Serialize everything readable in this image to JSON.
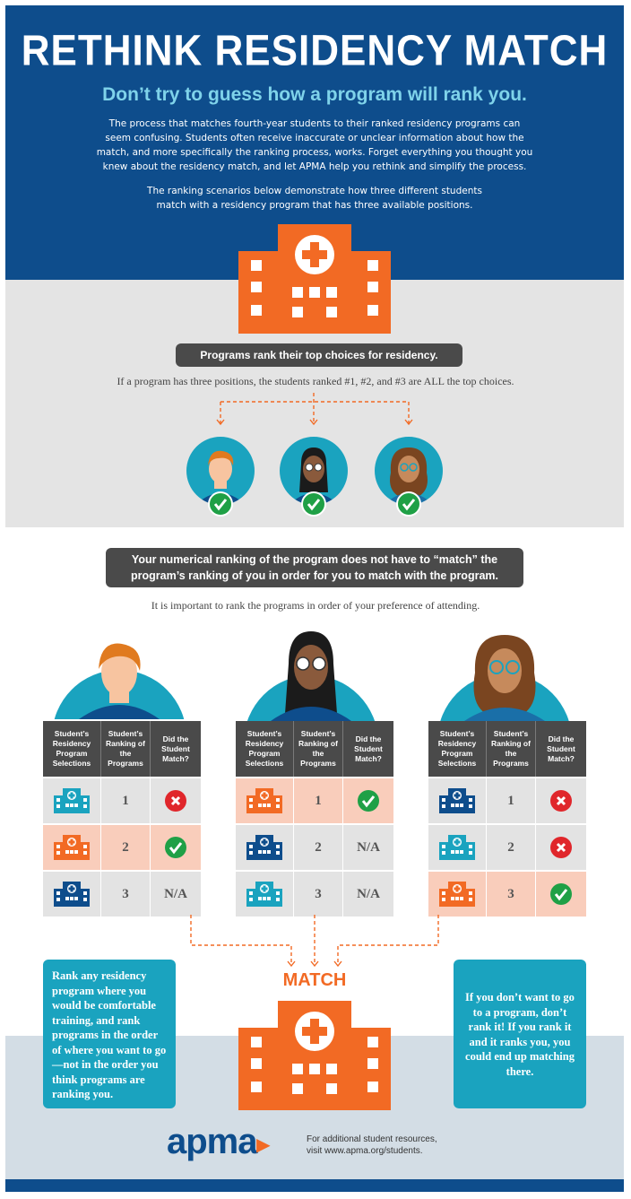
{
  "header": {
    "title": "RETHINK RESIDENCY MATCH",
    "subtitle": "Don’t try to guess how a program will rank you.",
    "intro": "The process that matches fourth-year students to their ranked residency programs can seem confusing. Students often receive inaccurate or unclear information about how the match, and more specifically the ranking process, works. Forget everything you thought you knew about the residency match, and let APMA help you rethink and simplify the process.",
    "scenario_note": "The ranking scenarios below demonstrate how three different students match with a residency program that has three available positions."
  },
  "programs_section": {
    "pill": "Programs rank their top choices for residency.",
    "note": "If a program has three positions, the students ranked #1, #2, and #3 are ALL the top choices."
  },
  "ranking_section": {
    "pill_line1": "Your numerical ranking of the program does not have to “match” the",
    "pill_line2": "program’s ranking of you in order for you to match with the program.",
    "note": "It is important to rank the programs in order of your preference of attending."
  },
  "table_headers": [
    "Student’s Residency Program Selections",
    "Student’s Ranking of the Programs",
    "Did the Student Match?"
  ],
  "colors": {
    "navy": "#0e4d8c",
    "teal": "#1aa3bf",
    "orange": "#f26a24",
    "peach": "#f9cdbb",
    "check_green": "#1fa046",
    "x_red": "#e0262b"
  },
  "students": [
    {
      "rows": [
        {
          "program": "teal-hospital-icon",
          "rank": "1",
          "match": "x-icon",
          "highlight": false
        },
        {
          "program": "orange-hospital-icon",
          "rank": "2",
          "match": "check-icon",
          "highlight": true
        },
        {
          "program": "navy-hospital-icon",
          "rank": "3",
          "match": "N/A",
          "highlight": false
        }
      ]
    },
    {
      "rows": [
        {
          "program": "orange-hospital-icon",
          "rank": "1",
          "match": "check-icon",
          "highlight": true
        },
        {
          "program": "navy-hospital-icon",
          "rank": "2",
          "match": "N/A",
          "highlight": false
        },
        {
          "program": "teal-hospital-icon",
          "rank": "3",
          "match": "N/A",
          "highlight": false
        }
      ]
    },
    {
      "rows": [
        {
          "program": "navy-hospital-icon",
          "rank": "1",
          "match": "x-icon",
          "highlight": false
        },
        {
          "program": "teal-hospital-icon",
          "rank": "2",
          "match": "x-icon",
          "highlight": false
        },
        {
          "program": "orange-hospital-icon",
          "rank": "3",
          "match": "check-icon",
          "highlight": true
        }
      ]
    }
  ],
  "match_label": "MATCH",
  "tip_left": "Rank any residency program where you would be comfortable training, and rank programs in the order of where you want to go—not in the order you think programs are ranking you.",
  "tip_right": "If you don’t want to go to a program, don’t rank it! If you rank it and it ranks you, you could end up matching there.",
  "footer": {
    "logo": "apma",
    "line1": "For additional student resources,",
    "line2": "visit www.apma.org/students."
  }
}
